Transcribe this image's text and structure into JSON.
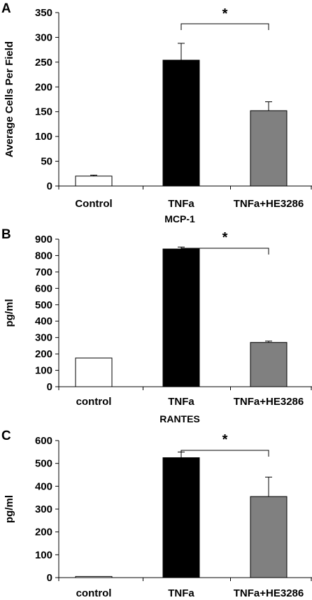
{
  "chart_data": [
    {
      "type": "bar",
      "panel_label": "A",
      "title": "",
      "xlabel": "",
      "ylabel": "Average Cells Per Field",
      "ylim": [
        0,
        350
      ],
      "yticks": [
        0,
        50,
        100,
        150,
        200,
        250,
        300,
        350
      ],
      "categories": [
        "Control",
        "TNFa",
        "TNFa+HE3286"
      ],
      "values": [
        20,
        254,
        152
      ],
      "errors": [
        2,
        34,
        18
      ],
      "bar_colors": [
        "#ffffff",
        "#000000",
        "#808080"
      ],
      "significance": {
        "from": 1,
        "to": 2,
        "label": "*"
      },
      "grid": false,
      "legend": "none"
    },
    {
      "type": "bar",
      "panel_label": "B",
      "title": "MCP-1",
      "xlabel": "",
      "ylabel": "pg/ml",
      "ylim": [
        0,
        900
      ],
      "yticks": [
        0,
        100,
        200,
        300,
        400,
        500,
        600,
        700,
        800,
        900
      ],
      "categories": [
        "control",
        "TNFa",
        "TNFa+HE3286"
      ],
      "values": [
        175,
        840,
        270
      ],
      "errors": [
        0,
        12,
        8
      ],
      "bar_colors": [
        "#ffffff",
        "#000000",
        "#808080"
      ],
      "significance": {
        "from": 1,
        "to": 2,
        "label": "*"
      },
      "grid": false,
      "legend": "none"
    },
    {
      "type": "bar",
      "panel_label": "C",
      "title": "RANTES",
      "xlabel": "",
      "ylabel": "pg/ml",
      "ylim": [
        0,
        600
      ],
      "yticks": [
        0,
        100,
        200,
        300,
        400,
        500,
        600
      ],
      "categories": [
        "control",
        "TNFa",
        "TNFa+HE3286"
      ],
      "values": [
        5,
        525,
        355
      ],
      "errors": [
        0,
        25,
        85
      ],
      "bar_colors": [
        "#ffffff",
        "#000000",
        "#808080"
      ],
      "significance": {
        "from": 1,
        "to": 2,
        "label": "*"
      },
      "grid": false,
      "legend": "none"
    }
  ]
}
